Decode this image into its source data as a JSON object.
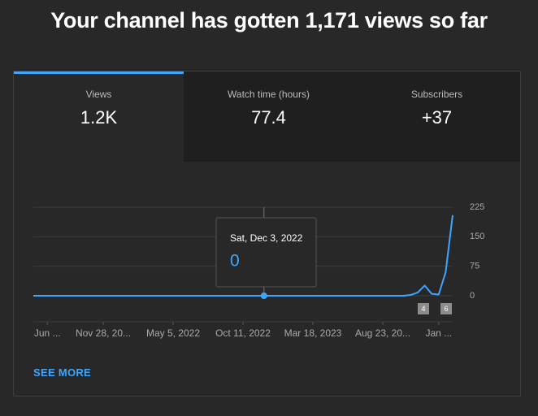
{
  "header": {
    "title": "Your channel has gotten 1,171 views so far"
  },
  "tabs": [
    {
      "label": "Views",
      "value": "1.2K"
    },
    {
      "label": "Watch time (hours)",
      "value": 77.4
    },
    {
      "label": "Subscribers",
      "value": "+37"
    }
  ],
  "chart_data": {
    "type": "line",
    "categories": [
      null,
      null,
      "Jun ...",
      null,
      null,
      null,
      null,
      null,
      null,
      null,
      "Nov 28, 20...",
      null,
      null,
      null,
      null,
      null,
      null,
      null,
      null,
      null,
      "May 5, 2022",
      null,
      null,
      null,
      null,
      null,
      null,
      null,
      null,
      null,
      "Oct 11, 2022",
      null,
      null,
      null,
      null,
      null,
      null,
      null,
      null,
      null,
      "Mar 18, 2023",
      null,
      null,
      null,
      null,
      null,
      null,
      null,
      null,
      null,
      "Aug 23, 20...",
      null,
      null,
      null,
      null,
      null,
      null,
      null,
      "Jan ...",
      null,
      null
    ],
    "values": [
      0,
      0,
      0,
      0,
      0,
      0,
      0,
      0,
      0,
      0,
      0,
      0,
      0,
      0,
      0,
      0,
      0,
      0,
      0,
      0,
      0,
      0,
      0,
      0,
      0,
      0,
      0,
      0,
      0,
      0,
      0,
      0,
      0,
      0,
      0,
      0,
      0,
      0,
      0,
      0,
      0,
      0,
      0,
      0,
      0,
      0,
      0,
      0,
      0,
      0,
      0,
      0,
      0,
      0,
      2,
      8,
      26,
      5,
      3,
      60,
      205
    ],
    "color": "#3ea6ff",
    "ylim": [
      0,
      225
    ],
    "yticks": [
      0,
      75,
      150,
      225
    ],
    "grid": true,
    "tooltip": {
      "label": "Sat, Dec 3, 2022",
      "value": 0
    },
    "markers": [
      4,
      6
    ]
  },
  "footer": {
    "link": "SEE MORE"
  }
}
